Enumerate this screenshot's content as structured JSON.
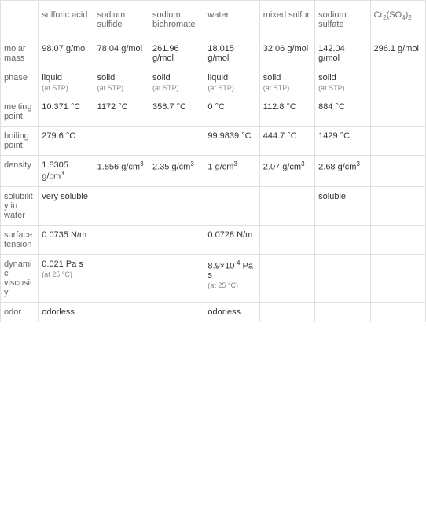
{
  "columns": [
    "",
    "sulfuric acid",
    "sodium sulfide",
    "sodium bichromate",
    "water",
    "mixed sulfur",
    "sodium sulfate",
    "Cr₂(SO₄)₂"
  ],
  "rows": [
    {
      "label": "molar mass",
      "cells": [
        {
          "main": "98.07 g/mol"
        },
        {
          "main": "78.04 g/mol"
        },
        {
          "main": "261.96 g/mol"
        },
        {
          "main": "18.015 g/mol"
        },
        {
          "main": "32.06 g/mol"
        },
        {
          "main": "142.04 g/mol"
        },
        {
          "main": "296.1 g/mol"
        }
      ]
    },
    {
      "label": "phase",
      "cells": [
        {
          "main": "liquid",
          "sub": "(at STP)"
        },
        {
          "main": "solid",
          "sub": "(at STP)"
        },
        {
          "main": "solid",
          "sub": "(at STP)"
        },
        {
          "main": "liquid",
          "sub": "(at STP)"
        },
        {
          "main": "solid",
          "sub": "(at STP)"
        },
        {
          "main": "solid",
          "sub": "(at STP)"
        },
        {
          "main": ""
        }
      ]
    },
    {
      "label": "melting point",
      "cells": [
        {
          "main": "10.371 °C"
        },
        {
          "main": "1172 °C"
        },
        {
          "main": "356.7 °C"
        },
        {
          "main": "0 °C"
        },
        {
          "main": "112.8 °C"
        },
        {
          "main": "884 °C"
        },
        {
          "main": ""
        }
      ]
    },
    {
      "label": "boiling point",
      "cells": [
        {
          "main": "279.6 °C"
        },
        {
          "main": ""
        },
        {
          "main": ""
        },
        {
          "main": "99.9839 °C"
        },
        {
          "main": "444.7 °C"
        },
        {
          "main": "1429 °C"
        },
        {
          "main": ""
        }
      ]
    },
    {
      "label": "density",
      "cells": [
        {
          "main": "1.8305 g/cm³"
        },
        {
          "main": "1.856 g/cm³"
        },
        {
          "main": "2.35 g/cm³"
        },
        {
          "main": "1 g/cm³"
        },
        {
          "main": "2.07 g/cm³"
        },
        {
          "main": "2.68 g/cm³"
        },
        {
          "main": ""
        }
      ]
    },
    {
      "label": "solubility in water",
      "cells": [
        {
          "main": "very soluble"
        },
        {
          "main": ""
        },
        {
          "main": ""
        },
        {
          "main": ""
        },
        {
          "main": ""
        },
        {
          "main": "soluble"
        },
        {
          "main": ""
        }
      ]
    },
    {
      "label": "surface tension",
      "cells": [
        {
          "main": "0.0735 N/m"
        },
        {
          "main": ""
        },
        {
          "main": ""
        },
        {
          "main": "0.0728 N/m"
        },
        {
          "main": ""
        },
        {
          "main": ""
        },
        {
          "main": ""
        }
      ]
    },
    {
      "label": "dynamic viscosity",
      "cells": [
        {
          "main": "0.021 Pa s",
          "sub": "(at 25 °C)"
        },
        {
          "main": "8.9×10⁻⁴ Pa s",
          "sub": "(at 25 °C)",
          "col": 3
        },
        {
          "main": ""
        },
        {
          "main": ""
        },
        {
          "main": ""
        }
      ],
      "raw": true
    },
    {
      "label": "odor",
      "cells": [
        {
          "main": "odorless"
        },
        {
          "main": ""
        },
        {
          "main": ""
        },
        {
          "main": "odorless"
        },
        {
          "main": ""
        },
        {
          "main": ""
        },
        {
          "main": ""
        }
      ]
    }
  ],
  "styling": {
    "border_color": "#e0e0e0",
    "text_color": "#333333",
    "header_color": "#666666",
    "sub_text_color": "#888888",
    "background_color": "#ffffff",
    "font_family": "Arial, sans-serif",
    "cell_font_size": 11,
    "sub_font_size": 9
  }
}
